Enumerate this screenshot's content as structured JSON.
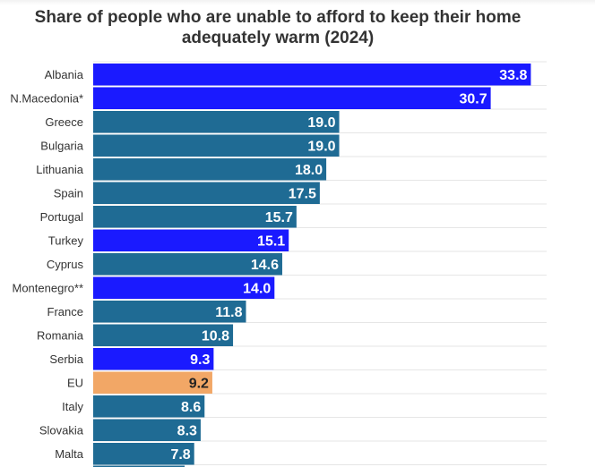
{
  "chart_data": {
    "type": "bar",
    "orientation": "horizontal",
    "title": "Share of people who are unable to afford to keep their home adequately warm (2024)",
    "categories": [
      "Albania",
      "N.Macedonia*",
      "Greece",
      "Bulgaria",
      "Lithuania",
      "Spain",
      "Portugal",
      "Turkey",
      "Cyprus",
      "Montenegro**",
      "France",
      "Romania",
      "Serbia",
      "EU",
      "Italy",
      "Slovakia",
      "Malta"
    ],
    "values": [
      33.8,
      30.7,
      19.0,
      19.0,
      18.0,
      17.5,
      15.7,
      15.1,
      14.6,
      14.0,
      11.8,
      10.8,
      9.3,
      9.2,
      8.6,
      8.3,
      7.8
    ],
    "value_labels": [
      "33.8",
      "30.7",
      "19.0",
      "19.0",
      "18.0",
      "17.5",
      "15.7",
      "15.1",
      "14.6",
      "14.0",
      "11.8",
      "10.8",
      "9.3",
      "9.2",
      "8.6",
      "8.3",
      "7.8"
    ],
    "bar_colors": [
      "#1a1aff",
      "#1a1aff",
      "#1f6b94",
      "#1f6b94",
      "#1f6b94",
      "#1f6b94",
      "#1f6b94",
      "#1a1aff",
      "#1f6b94",
      "#1a1aff",
      "#1f6b94",
      "#1f6b94",
      "#1a1aff",
      "#f2a766",
      "#1f6b94",
      "#1f6b94",
      "#1f6b94"
    ],
    "colors": {
      "non_eu": "#1a1aff",
      "eu_member": "#1f6b94",
      "eu_average": "#f2a766"
    },
    "xlim": [
      0,
      35
    ],
    "grid": true,
    "legend": "none"
  }
}
